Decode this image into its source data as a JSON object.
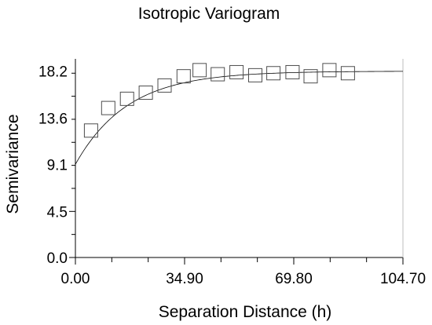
{
  "chart_data": {
    "type": "scatter",
    "title": "Isotropic Variogram",
    "xlabel": "Separation Distance (h)",
    "ylabel": "Semivariance",
    "xlim": [
      0,
      104.7
    ],
    "ylim": [
      0,
      19.4
    ],
    "x_ticks": [
      "0.00",
      "34.90",
      "69.80",
      "104.70"
    ],
    "y_ticks": [
      "0.0",
      "4.5",
      "9.1",
      "13.6",
      "18.2"
    ],
    "grid": false,
    "marker": "square",
    "colors": {
      "axis": "#000000",
      "marker": "#4d4d4d",
      "model": "#000000"
    },
    "series": [
      {
        "values": [
          {
            "x": 5.0,
            "y": 12.4
          },
          {
            "x": 10.5,
            "y": 14.6
          },
          {
            "x": 16.5,
            "y": 15.5
          },
          {
            "x": 22.5,
            "y": 16.1
          },
          {
            "x": 28.5,
            "y": 16.8
          },
          {
            "x": 34.6,
            "y": 17.7
          },
          {
            "x": 39.7,
            "y": 18.3
          },
          {
            "x": 45.5,
            "y": 17.9
          },
          {
            "x": 51.5,
            "y": 18.1
          },
          {
            "x": 57.5,
            "y": 17.8
          },
          {
            "x": 63.3,
            "y": 18.0
          },
          {
            "x": 69.4,
            "y": 18.1
          },
          {
            "x": 75.2,
            "y": 17.7
          },
          {
            "x": 81.2,
            "y": 18.3
          },
          {
            "x": 87.1,
            "y": 18.0
          }
        ]
      }
    ],
    "model_curve": {
      "type": "exponential",
      "nugget": 9.1,
      "sill": 18.2,
      "range": 50
    }
  }
}
